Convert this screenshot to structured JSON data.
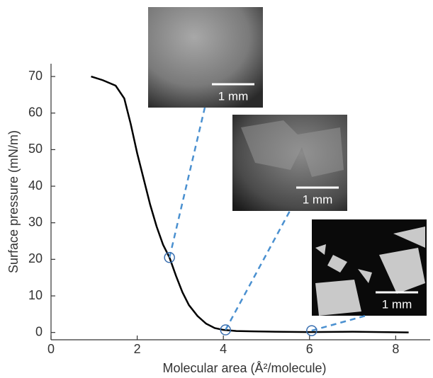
{
  "chart_data": {
    "type": "line",
    "x_label": "Molecular area (Å²/molecule)",
    "y_label": "Surface pressure (mN/m)",
    "xlim": [
      0,
      8.8
    ],
    "ylim": [
      -2,
      73.5
    ],
    "xticks": [
      0,
      2,
      4,
      6,
      8
    ],
    "yticks": [
      0,
      10,
      20,
      30,
      40,
      50,
      60,
      70
    ],
    "series": [
      {
        "color": "#000000",
        "x": [
          0.93,
          1.2,
          1.5,
          1.7,
          1.85,
          2.0,
          2.15,
          2.3,
          2.45,
          2.6,
          2.75,
          2.9,
          3.05,
          3.2,
          3.4,
          3.6,
          3.8,
          4.0,
          4.3,
          4.7,
          5.2,
          6.0,
          7.0,
          8.3
        ],
        "values": [
          70,
          69,
          67.5,
          64,
          57,
          49,
          42,
          35,
          29,
          24,
          20.5,
          15.5,
          11,
          7.5,
          4.5,
          2.4,
          1.2,
          0.7,
          0.4,
          0.3,
          0.2,
          0.1,
          0.2,
          0
        ]
      }
    ],
    "markers": {
      "color": "#3a6fb0",
      "x": [
        2.75,
        4.05,
        6.05
      ],
      "values": [
        20.5,
        0.7,
        0.5
      ]
    },
    "insets": [
      {
        "scale_label": "1 mm"
      },
      {
        "scale_label": "1 mm"
      },
      {
        "scale_label": "1 mm"
      }
    ]
  }
}
